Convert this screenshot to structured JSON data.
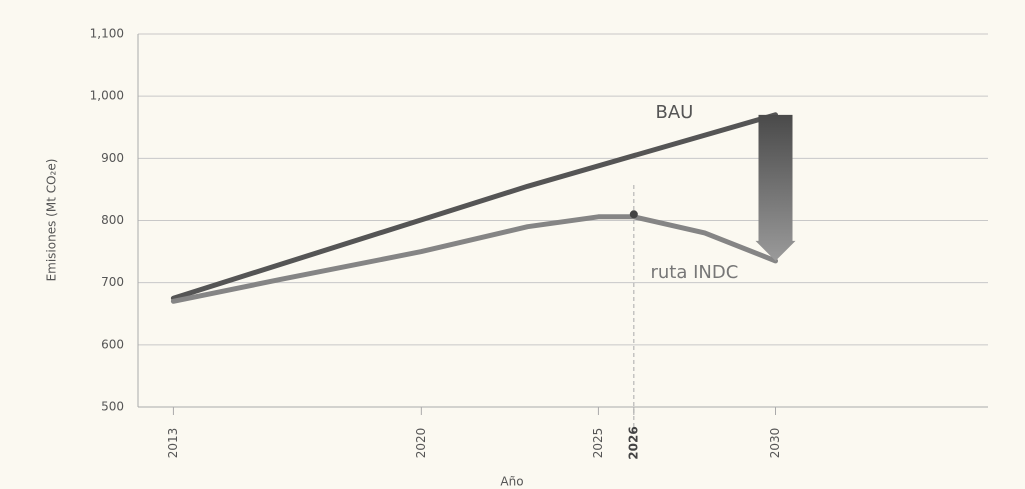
{
  "chart_data": {
    "type": "line",
    "x_label": "Año",
    "y_label": "Emisiones (Mt CO₂e)",
    "xlim": [
      2012,
      2036
    ],
    "xticks": [
      2013,
      2020,
      2025,
      2026,
      2030
    ],
    "ylim": [
      500,
      1100
    ],
    "yticks": [
      500,
      600,
      700,
      800,
      900,
      {
        "value": 1000,
        "label": "1,000"
      },
      {
        "value": 1100,
        "label": "1,100"
      }
    ],
    "grid": true,
    "series": [
      {
        "name": "BAU",
        "color": "#555555",
        "x": [
          2013,
          2023,
          2030
        ],
        "values": [
          675,
          855,
          970
        ]
      },
      {
        "name": "ruta INDC",
        "color": "#858585",
        "x": [
          2013,
          2016,
          2020,
          2023,
          2025,
          2026,
          2028,
          2030
        ],
        "values": [
          670,
          705,
          750,
          790,
          806,
          806,
          780,
          735
        ]
      }
    ],
    "highlight": {
      "x": 2026,
      "value": 810
    }
  }
}
